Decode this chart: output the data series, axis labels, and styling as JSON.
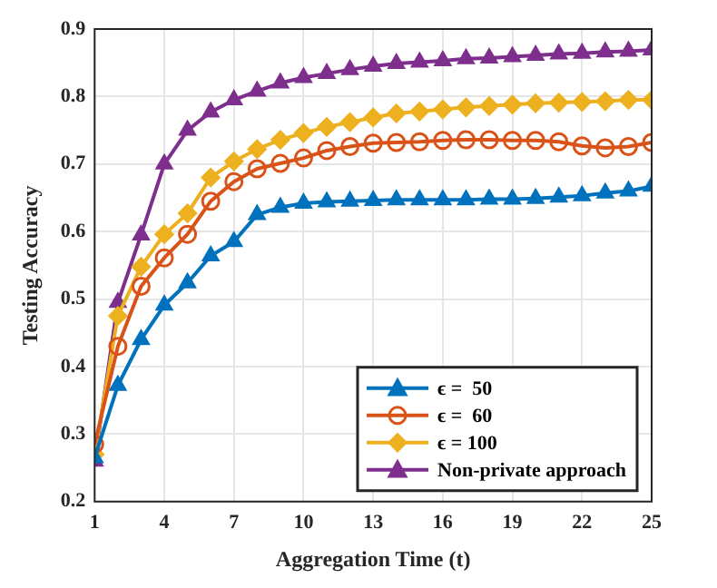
{
  "chart_data": {
    "type": "line",
    "xlabel": "Aggregation Time (t)",
    "ylabel": "Testing Accuracy",
    "x": [
      1,
      2,
      3,
      4,
      5,
      6,
      7,
      8,
      9,
      10,
      11,
      12,
      13,
      14,
      15,
      16,
      17,
      18,
      19,
      20,
      21,
      22,
      23,
      24,
      25
    ],
    "xlim": [
      1,
      25
    ],
    "xticks": [
      1,
      4,
      7,
      10,
      13,
      16,
      19,
      22,
      25
    ],
    "ylim": [
      0.2,
      0.9
    ],
    "yticks": [
      0.2,
      0.3,
      0.4,
      0.5,
      0.6,
      0.7,
      0.8,
      0.9
    ],
    "grid": true,
    "legend": "bottom right",
    "line_style": "solid",
    "series": [
      {
        "name": "ϵ =  50",
        "color": "#0072bd",
        "marker": "triangle",
        "values": [
          0.265,
          0.372,
          0.44,
          0.491,
          0.524,
          0.564,
          0.585,
          0.625,
          0.636,
          0.642,
          0.644,
          0.645,
          0.646,
          0.647,
          0.647,
          0.647,
          0.647,
          0.648,
          0.648,
          0.649,
          0.651,
          0.653,
          0.657,
          0.66,
          0.667
        ]
      },
      {
        "name": "ϵ =  60",
        "color": "#d95319",
        "marker": "circle",
        "values": [
          0.285,
          0.43,
          0.519,
          0.561,
          0.596,
          0.645,
          0.674,
          0.693,
          0.701,
          0.709,
          0.72,
          0.726,
          0.731,
          0.732,
          0.733,
          0.735,
          0.736,
          0.736,
          0.735,
          0.735,
          0.733,
          0.727,
          0.724,
          0.726,
          0.732
        ]
      },
      {
        "name": "ϵ = 100",
        "color": "#edb120",
        "marker": "diamond",
        "values": [
          0.27,
          0.475,
          0.548,
          0.596,
          0.627,
          0.68,
          0.704,
          0.722,
          0.736,
          0.746,
          0.755,
          0.762,
          0.769,
          0.775,
          0.778,
          0.781,
          0.784,
          0.786,
          0.788,
          0.79,
          0.791,
          0.792,
          0.793,
          0.795,
          0.795
        ]
      },
      {
        "name": "Non-private approach",
        "color": "#7e2f8e",
        "marker": "triangle",
        "values": [
          0.26,
          0.495,
          0.595,
          0.7,
          0.75,
          0.777,
          0.795,
          0.808,
          0.82,
          0.828,
          0.834,
          0.84,
          0.845,
          0.849,
          0.851,
          0.853,
          0.856,
          0.857,
          0.859,
          0.861,
          0.863,
          0.864,
          0.866,
          0.867,
          0.869
        ]
      }
    ]
  }
}
